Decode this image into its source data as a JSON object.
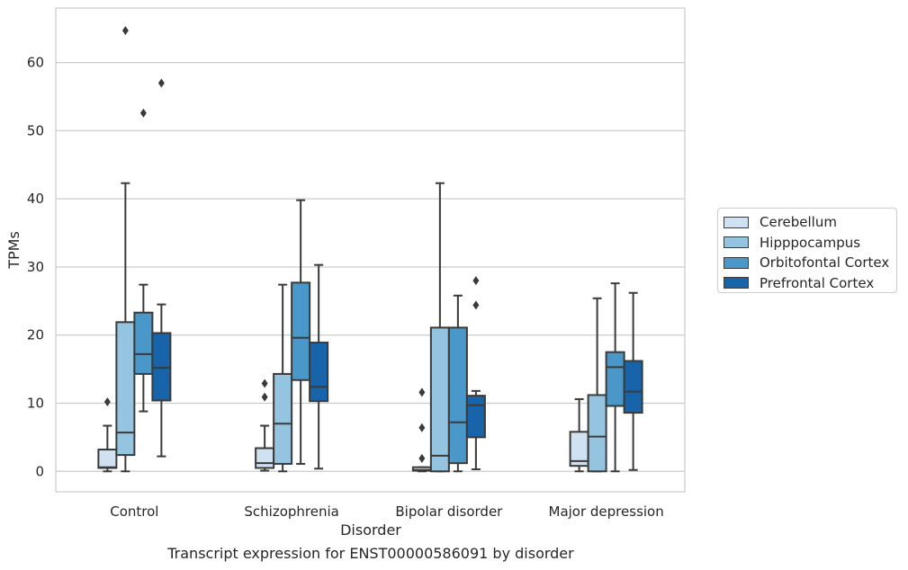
{
  "caption": "Transcript expression for ENST00000586091 by disorder",
  "colors": {
    "Cerebellum": "#d0e1f2",
    "Hipppocampus": "#94c4df",
    "Orbitofontal Cortex": "#4a98c9",
    "Prefrontal Cortex": "#1764ab",
    "grid": "#cccccc",
    "axes": "#cccccc",
    "box_line": "#3a3a3a"
  },
  "legend": {
    "placement": "right",
    "items": [
      "Cerebellum",
      "Hipppocampus",
      "Orbitofontal Cortex",
      "Prefrontal Cortex"
    ]
  },
  "chart_data": {
    "type": "box",
    "title": "",
    "xlabel": "Disorder",
    "ylabel": "TPMs",
    "categories": [
      "Control",
      "Schizophrenia",
      "Bipolar disorder",
      "Major depression"
    ],
    "ylim": [
      -3,
      68
    ],
    "yticks": [
      0,
      10,
      20,
      30,
      40,
      50,
      60
    ],
    "grid": true,
    "series": [
      {
        "name": "Cerebellum",
        "boxes": [
          {
            "min": 0,
            "q1": 0.5,
            "median": 0.6,
            "q3": 3.2,
            "max": 6.7,
            "outliers": [
              10.2
            ]
          },
          {
            "min": 0.1,
            "q1": 0.5,
            "median": 1.2,
            "q3": 3.4,
            "max": 6.7,
            "outliers": [
              10.9,
              12.9
            ]
          },
          {
            "min": 0,
            "q1": 0.1,
            "median": 0.2,
            "q3": 0.6,
            "max": 0.6,
            "outliers": [
              1.9,
              6.4,
              11.6
            ]
          },
          {
            "min": 0,
            "q1": 0.8,
            "median": 1.5,
            "q3": 5.8,
            "max": 10.6,
            "outliers": []
          }
        ]
      },
      {
        "name": "Hipppocampus",
        "boxes": [
          {
            "min": 0,
            "q1": 2.4,
            "median": 5.7,
            "q3": 21.9,
            "max": 42.3,
            "outliers": [
              64.7
            ]
          },
          {
            "min": 0,
            "q1": 1.1,
            "median": 7.0,
            "q3": 14.3,
            "max": 27.4,
            "outliers": []
          },
          {
            "min": 0,
            "q1": 0.0,
            "median": 2.3,
            "q3": 21.1,
            "max": 42.3,
            "outliers": []
          },
          {
            "min": 0,
            "q1": 0.0,
            "median": 5.1,
            "q3": 11.2,
            "max": 25.4,
            "outliers": []
          }
        ]
      },
      {
        "name": "Orbitofontal Cortex",
        "boxes": [
          {
            "min": 8.8,
            "q1": 14.3,
            "median": 17.2,
            "q3": 23.3,
            "max": 27.4,
            "outliers": [
              52.6
            ]
          },
          {
            "min": 1.1,
            "q1": 13.4,
            "median": 19.6,
            "q3": 27.7,
            "max": 39.8,
            "outliers": []
          },
          {
            "min": 0,
            "q1": 1.2,
            "median": 7.2,
            "q3": 21.1,
            "max": 25.8,
            "outliers": []
          },
          {
            "min": 0,
            "q1": 9.6,
            "median": 15.3,
            "q3": 17.5,
            "max": 27.6,
            "outliers": []
          }
        ]
      },
      {
        "name": "Prefrontal Cortex",
        "boxes": [
          {
            "min": 2.2,
            "q1": 10.4,
            "median": 15.2,
            "q3": 20.3,
            "max": 24.5,
            "outliers": [
              57.0
            ]
          },
          {
            "min": 0.4,
            "q1": 10.3,
            "median": 12.4,
            "q3": 18.9,
            "max": 30.3,
            "outliers": []
          },
          {
            "min": 0.3,
            "q1": 5.0,
            "median": 9.7,
            "q3": 11.1,
            "max": 11.8,
            "outliers": [
              24.4,
              28.0
            ]
          },
          {
            "min": 0.2,
            "q1": 8.6,
            "median": 11.7,
            "q3": 16.2,
            "max": 26.2,
            "outliers": []
          }
        ]
      }
    ]
  }
}
